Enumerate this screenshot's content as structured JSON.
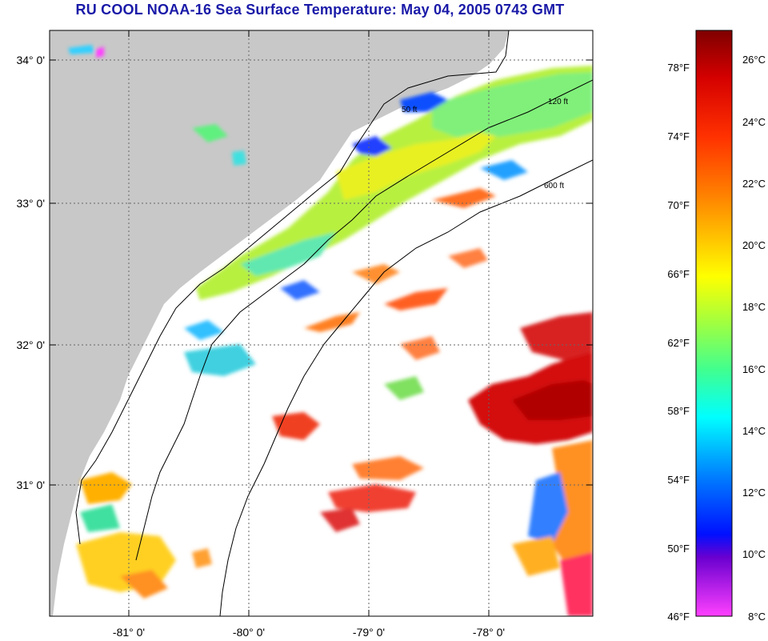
{
  "title": "RU COOL  NOAA-16  Sea Surface Temperature:  May 04, 2005 0743 GMT",
  "map": {
    "latitude_labels": [
      "34° 0'",
      "33° 0'",
      "32° 0'",
      "31° 0'"
    ],
    "longitude_labels": [
      "-81° 0'",
      "-80° 0'",
      "-79° 0'",
      "-78° 0'"
    ],
    "contour_labels": [
      "50 ft",
      "120 ft",
      "600 ft"
    ],
    "colors": {
      "land": "#c8c8c8",
      "ocean_no_data": "#ffffff",
      "grid": "#555555",
      "contour": "#000000"
    }
  },
  "colorbar": {
    "fahrenheit_labels": [
      "78°F",
      "74°F",
      "70°F",
      "66°F",
      "62°F",
      "58°F",
      "54°F",
      "50°F",
      "46°F"
    ],
    "celsius_labels": [
      "26°C",
      "24°C",
      "22°C",
      "20°C",
      "18°C",
      "16°C",
      "14°C",
      "12°C",
      "10°C",
      "8°C"
    ],
    "gradient": [
      "#7f0000",
      "#d40000",
      "#ff3000",
      "#ff8000",
      "#ffc800",
      "#ffff00",
      "#a0ff40",
      "#40ff90",
      "#00ffff",
      "#0080ff",
      "#0010ff",
      "#8000c0",
      "#ff40ff"
    ]
  }
}
